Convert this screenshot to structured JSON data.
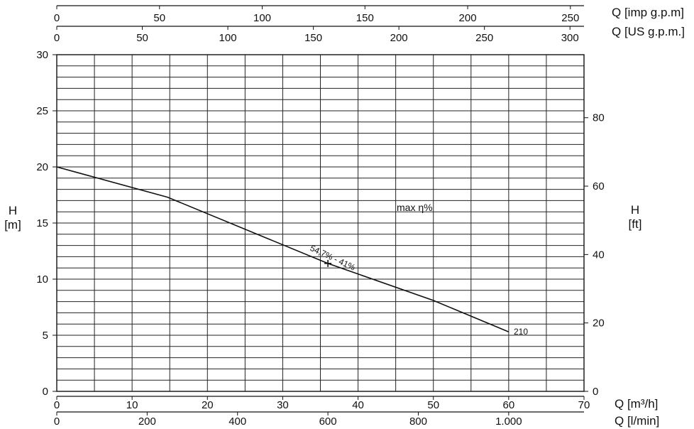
{
  "chart_data": {
    "type": "line",
    "title": "",
    "axes": {
      "bottom_primary": {
        "label": "Q [m³/h]",
        "range": [
          0,
          70
        ],
        "ticks": [
          "0",
          "10",
          "20",
          "30",
          "40",
          "50",
          "60",
          "70"
        ]
      },
      "bottom_secondary": {
        "label": "Q [l/min]",
        "ticks": [
          "0",
          "200",
          "400",
          "600",
          "800",
          "1.000"
        ]
      },
      "top_outer": {
        "label": "Q [imp g.p.m]",
        "ticks": [
          "0",
          "50",
          "100",
          "150",
          "200",
          "250"
        ]
      },
      "top_inner": {
        "label": "Q [US g.p.m.]",
        "ticks": [
          "0",
          "50",
          "100",
          "150",
          "200",
          "250",
          "300"
        ]
      },
      "left": {
        "label_line1": "H",
        "label_line2": "[m]",
        "range": [
          0,
          30
        ],
        "ticks": [
          "0",
          "5",
          "10",
          "15",
          "20",
          "25",
          "30"
        ]
      },
      "right": {
        "label_line1": "H",
        "label_line2": "[ft]",
        "ticks": [
          "0",
          "20",
          "40",
          "60",
          "80"
        ]
      }
    },
    "series": [
      {
        "x": [
          0,
          14.7,
          36,
          50,
          60
        ],
        "y": [
          20,
          17.3,
          11.4,
          8.1,
          5.3
        ],
        "end_label": "210"
      }
    ],
    "annotations": {
      "max_eta": "max η%",
      "efficiency": "54,7% - 41%",
      "bep_point": {
        "x": 36,
        "y": 11.4
      }
    },
    "grid": true,
    "legend": "none",
    "colors": {
      "line": "#111111",
      "grid": "#222222",
      "background": "#ffffff"
    }
  }
}
